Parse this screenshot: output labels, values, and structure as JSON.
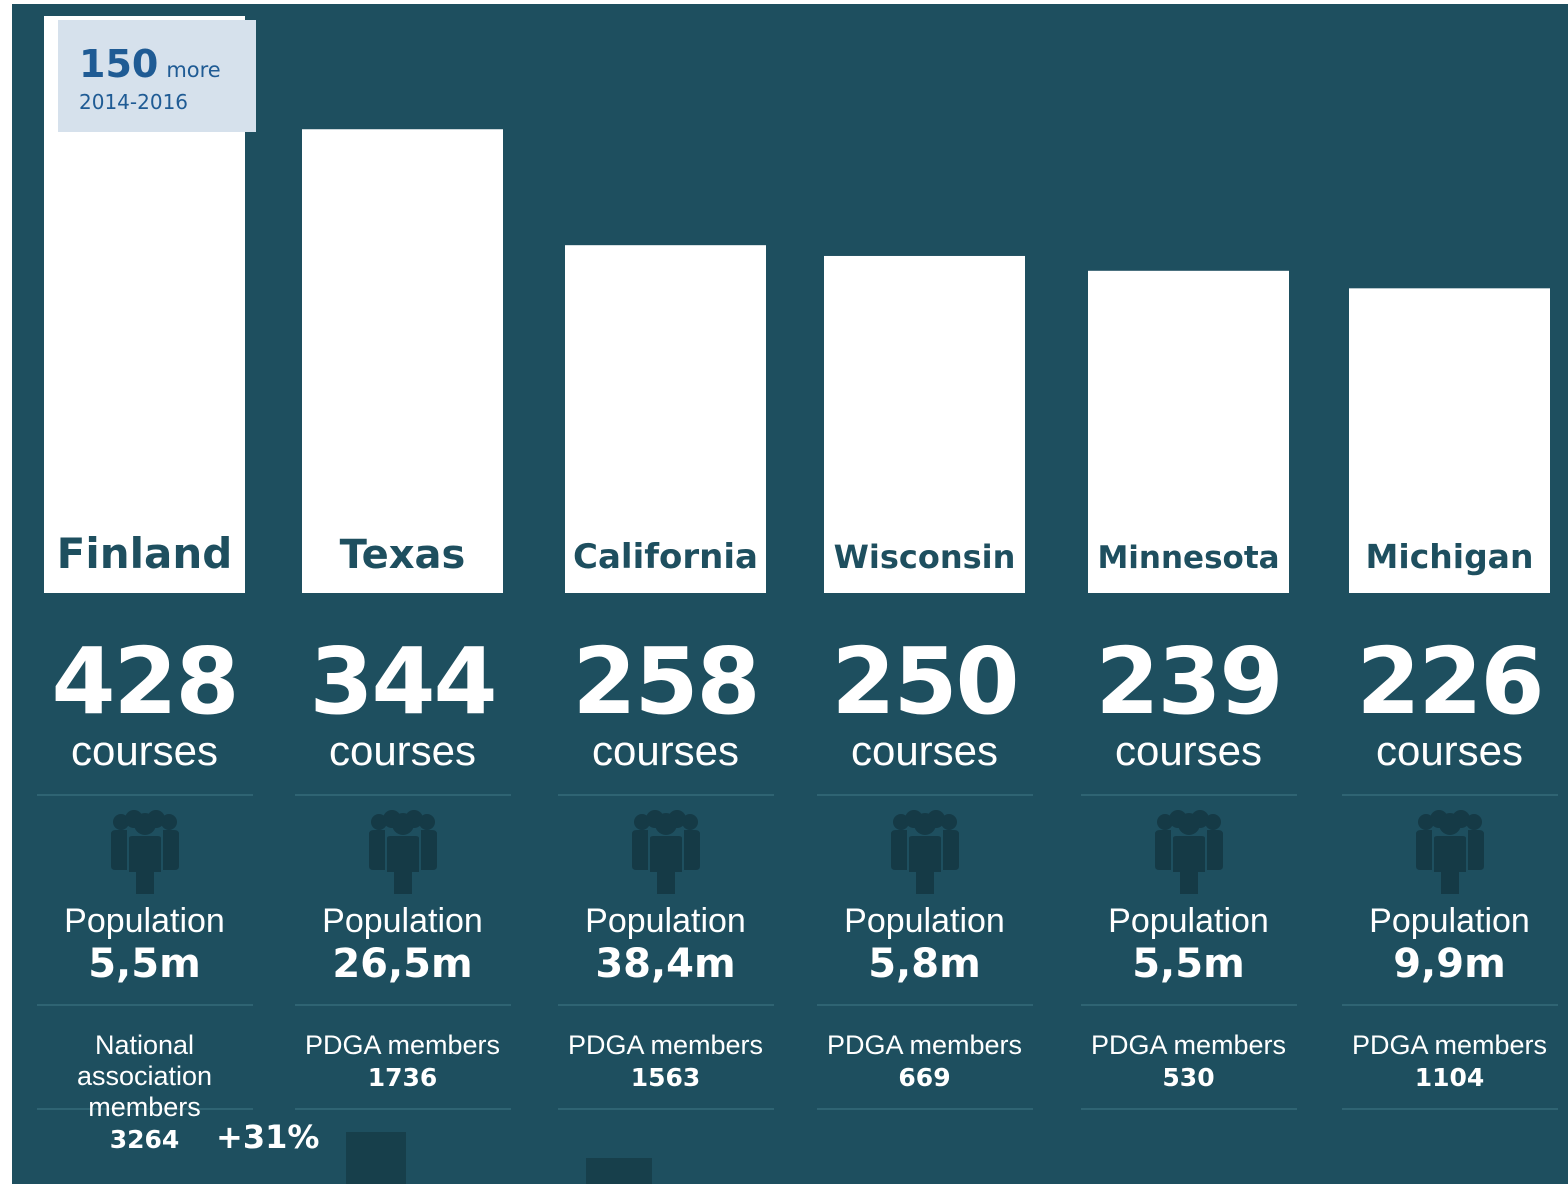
{
  "chart_data": {
    "type": "bar",
    "categories": [
      "Finland",
      "Texas",
      "California",
      "Wisconsin",
      "Minnesota",
      "Michigan"
    ],
    "values": [
      428,
      344,
      258,
      250,
      239,
      226
    ],
    "value_unit_label": "courses",
    "ylim": [
      0,
      428
    ],
    "grid": false,
    "legend": "none",
    "annotation": {
      "value": "150",
      "text": "more",
      "period": "2014-2016"
    },
    "population": {
      "label": "Population",
      "values": [
        "5,5m",
        "26,5m",
        "38,4m",
        "5,8m",
        "5,5m",
        "9,9m"
      ]
    },
    "members": {
      "labels": [
        "National association members",
        "PDGA members",
        "PDGA members",
        "PDGA members",
        "PDGA members",
        "PDGA members"
      ],
      "values": [
        "3264",
        "1736",
        "1563",
        "669",
        "530",
        "1104"
      ],
      "finland_growth": "+31%"
    }
  },
  "colors": {
    "background": "#1e4f5f",
    "bar": "#ffffff",
    "bar_label": "#1e4f5f",
    "annotation_box": "#d6e1ec",
    "annotation_text": "#1f5b94",
    "icon": "#153a46"
  },
  "icons": [
    "people-icon"
  ]
}
